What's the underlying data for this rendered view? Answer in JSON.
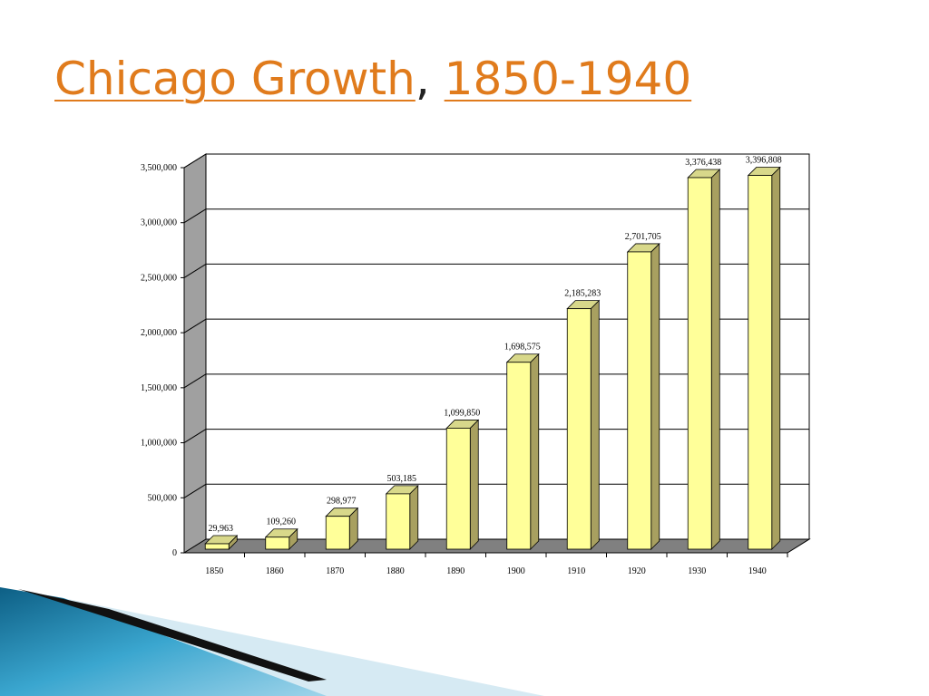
{
  "slide": {
    "title_link_1": "Chicago Growth",
    "title_sep": ",",
    "title_link_2": "1850-1940"
  },
  "colors": {
    "title": "#e07b1c",
    "bar_front": "#ffff99",
    "bar_top": "#d8d88a",
    "bar_side": "#a8a060",
    "wall": "#a0a0a0",
    "floor": "#808080",
    "deco_blue": "#1f7ea8"
  },
  "chart_data": {
    "type": "bar",
    "title": "",
    "xlabel": "",
    "ylabel": "",
    "categories": [
      "1850",
      "1860",
      "1870",
      "1880",
      "1890",
      "1900",
      "1910",
      "1920",
      "1930",
      "1940"
    ],
    "values": [
      29963,
      109260,
      298977,
      503185,
      1099850,
      1698575,
      2185283,
      2701705,
      3376438,
      3396808
    ],
    "value_labels": [
      "29,963",
      "109,260",
      "298,977",
      "503,185",
      "1,099,850",
      "1,698,575",
      "2,185,283",
      "2,701,705",
      "3,376,438",
      "3,396,808"
    ],
    "ylim": [
      0,
      3500000
    ],
    "y_ticks": [
      0,
      500000,
      1000000,
      1500000,
      2000000,
      2500000,
      3000000,
      3500000
    ],
    "y_tick_labels": [
      "0",
      "500,000",
      "1,000,000",
      "1,500,000",
      "2,000,000",
      "2,500,000",
      "3,000,000",
      "3,500,000"
    ],
    "grid": true,
    "style": "3d"
  }
}
